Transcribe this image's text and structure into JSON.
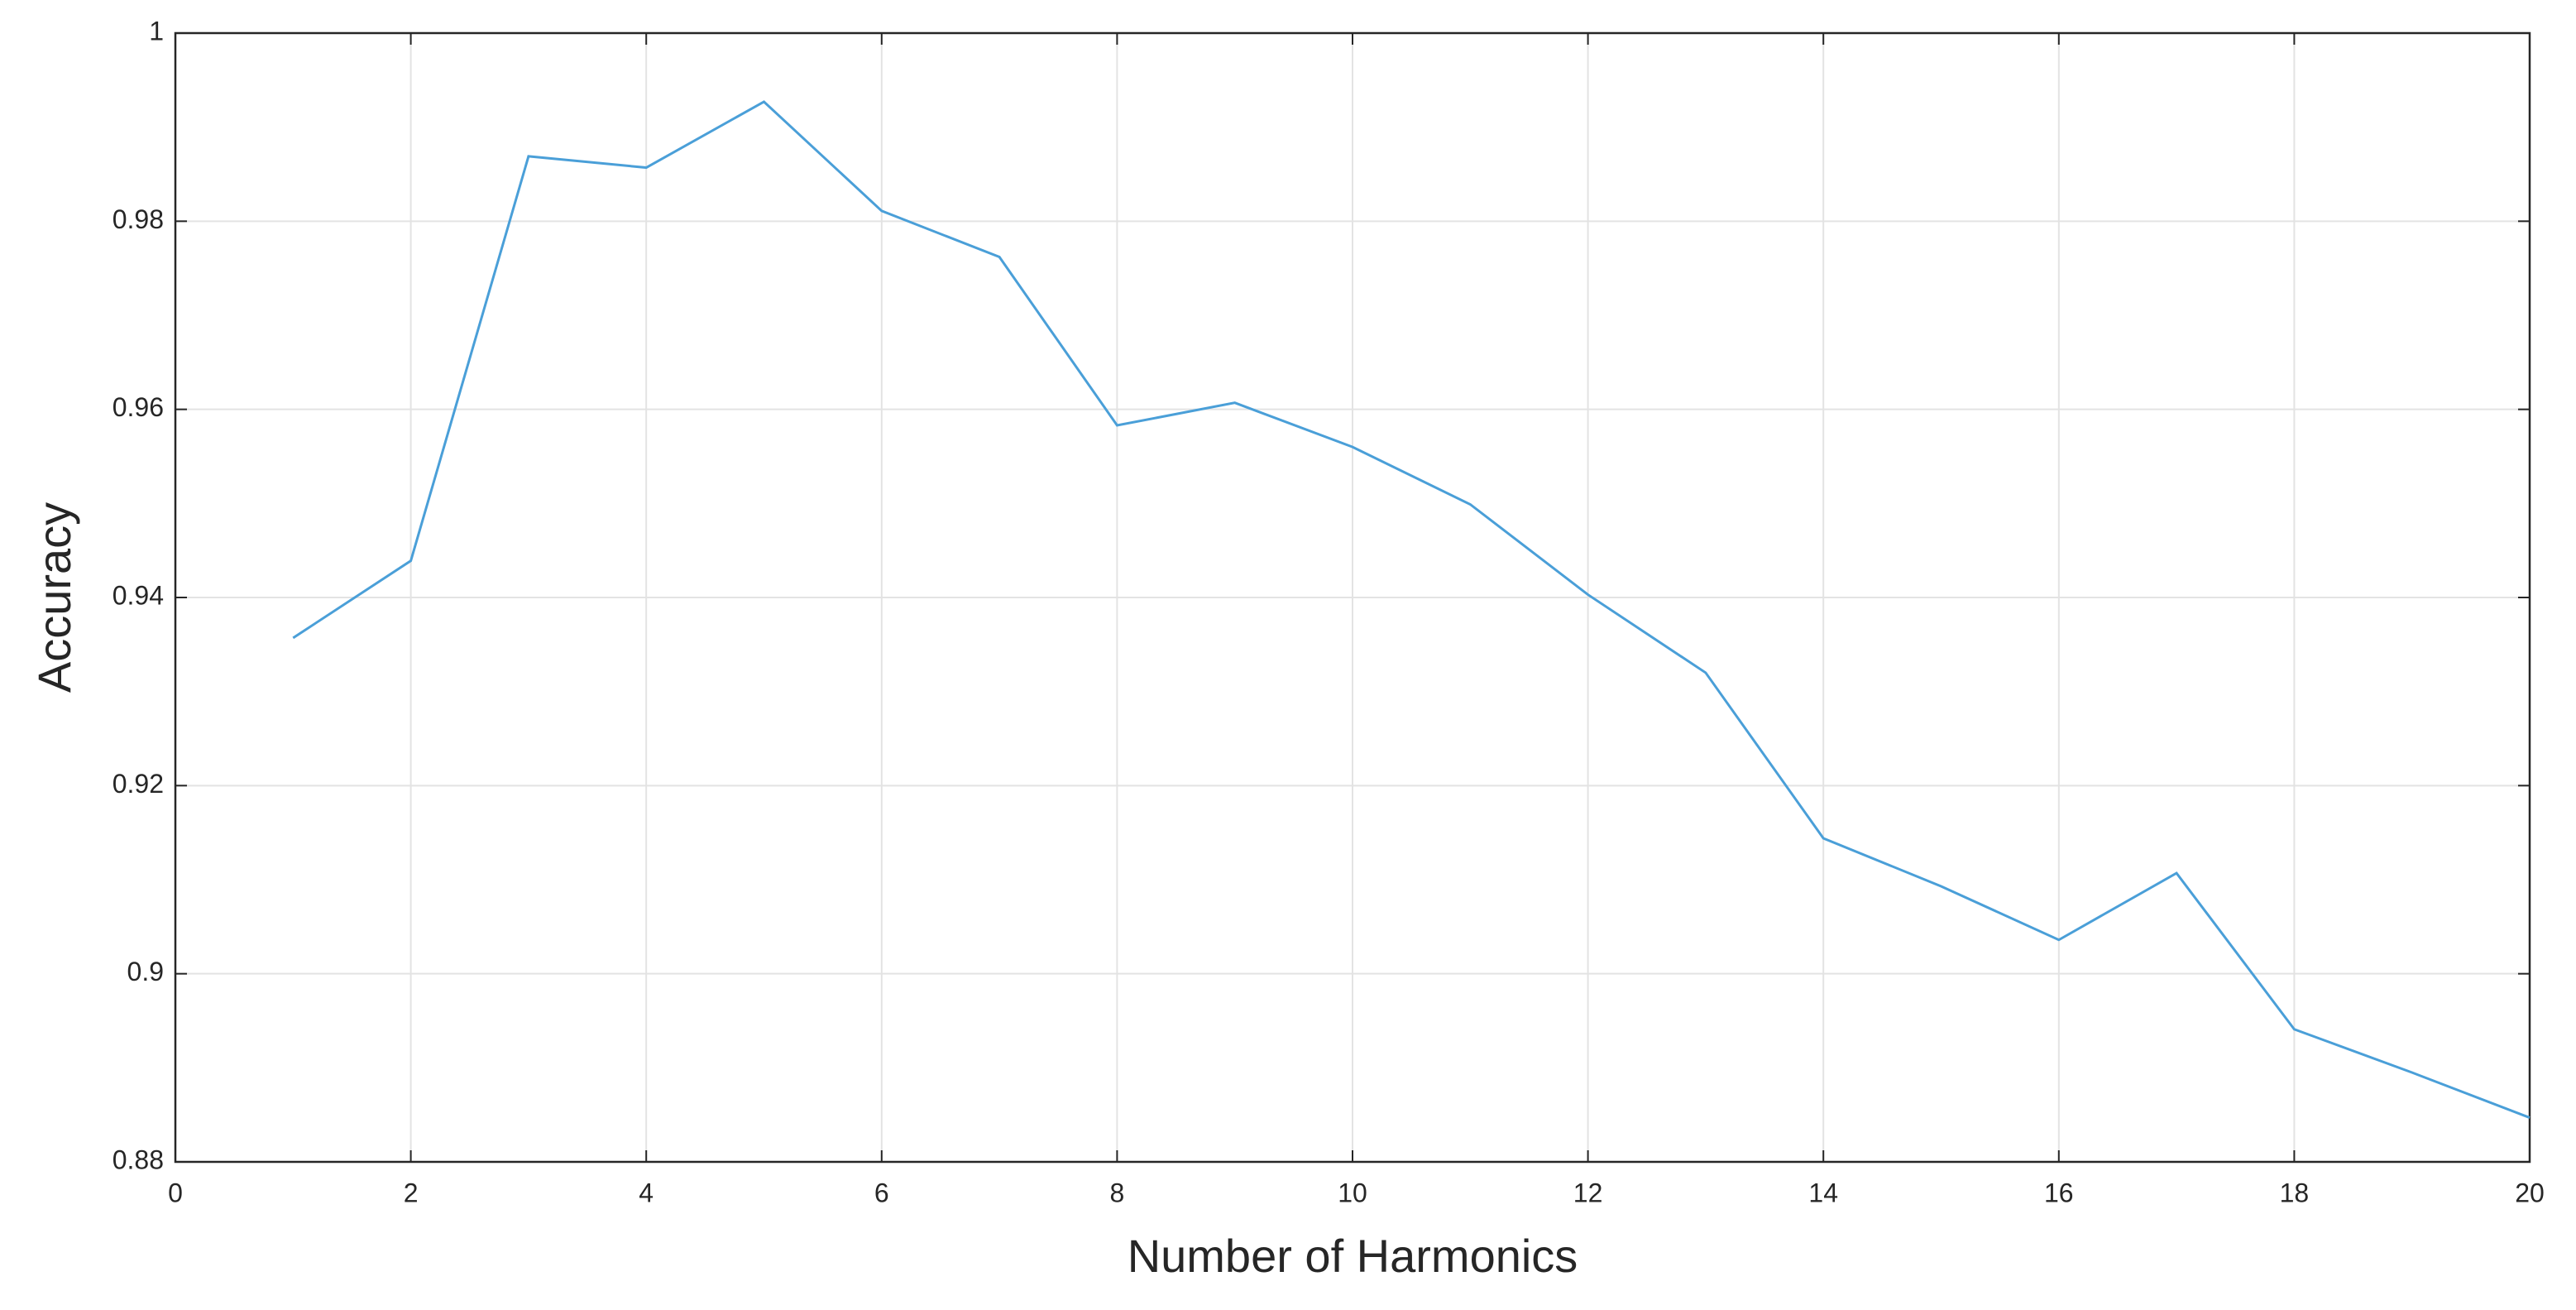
{
  "chart_data": {
    "type": "line",
    "x_label": "Number of Harmonics",
    "y_label": "Accuracy",
    "x": [
      1,
      2,
      3,
      4,
      5,
      6,
      7,
      8,
      9,
      10,
      11,
      12,
      13,
      14,
      15,
      16,
      17,
      18,
      19,
      20
    ],
    "series": [
      {
        "color": "#4a9fd8",
        "values": [
          0.9357,
          0.9439,
          0.9869,
          0.9857,
          0.9927,
          0.9811,
          0.9762,
          0.9583,
          0.9607,
          0.956,
          0.9499,
          0.9403,
          0.932,
          0.9144,
          0.9093,
          0.9036,
          0.9107,
          0.8941,
          0.8895,
          0.8847
        ]
      }
    ],
    "xlim": [
      0,
      20
    ],
    "xticks": [
      0,
      2,
      4,
      6,
      8,
      10,
      12,
      14,
      16,
      18,
      20
    ],
    "ylim": [
      0.88,
      1
    ],
    "yticks": [
      0.88,
      0.9,
      0.92,
      0.94,
      0.96,
      0.98,
      1
    ],
    "grid": true
  }
}
